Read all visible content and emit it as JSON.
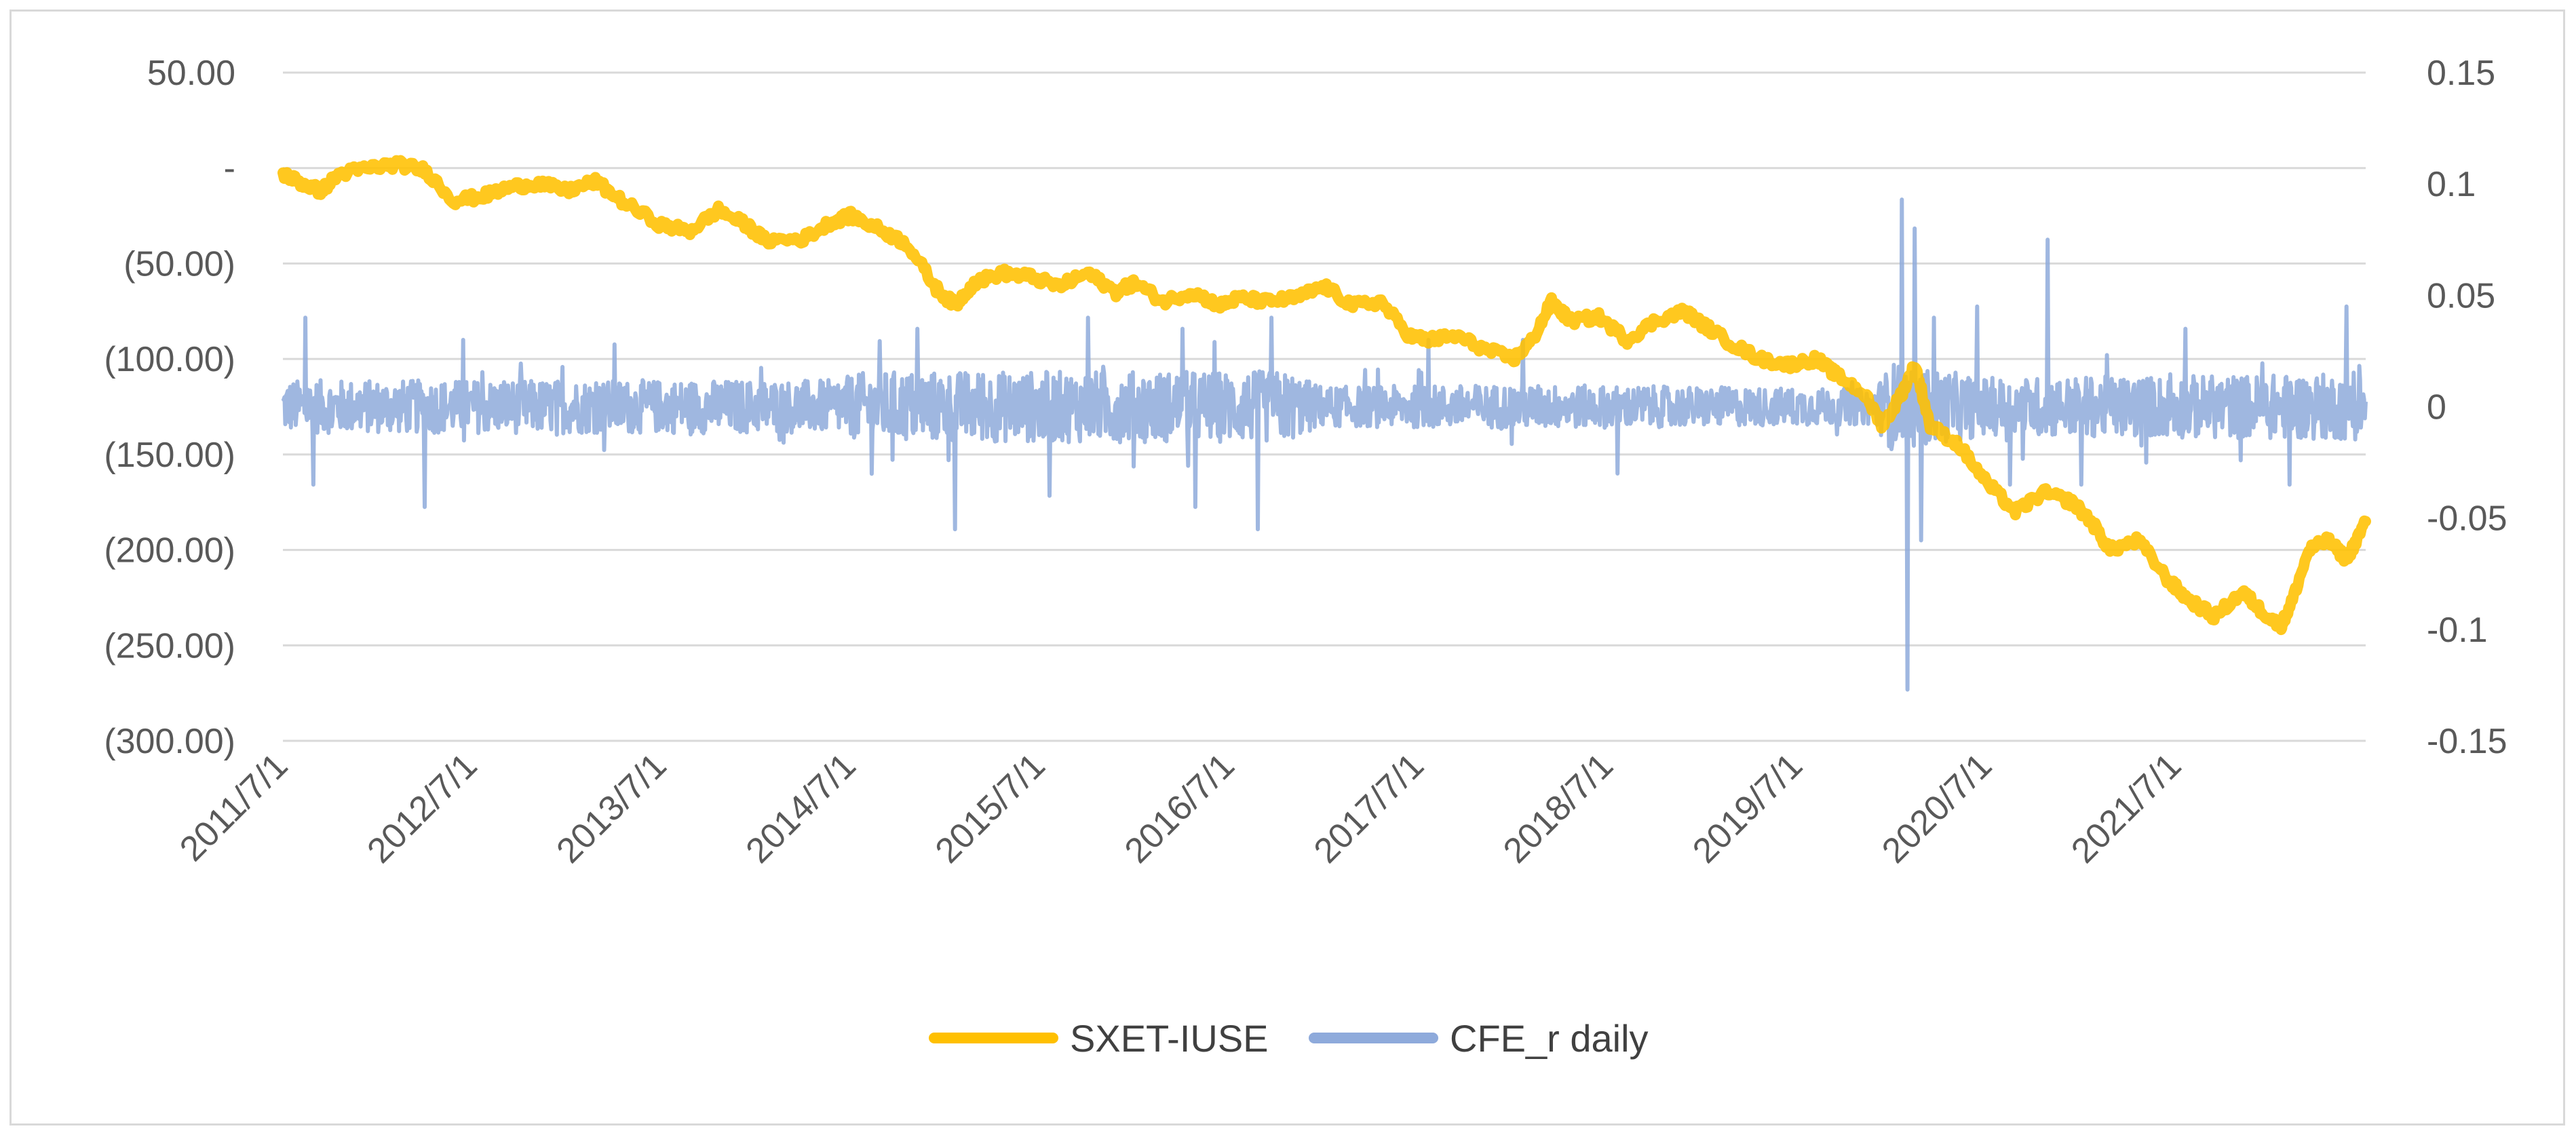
{
  "chart_data": {
    "type": "line",
    "title": "",
    "xlabel": "",
    "ylabel": "",
    "x_tick_labels": [
      "2011/7/1",
      "2012/7/1",
      "2013/7/1",
      "2014/7/1",
      "2015/7/1",
      "2016/7/1",
      "2017/7/1",
      "2018/7/1",
      "2019/7/1",
      "2020/7/1",
      "2021/7/1"
    ],
    "x_range": [
      2011.5,
      2022.5
    ],
    "y_left": {
      "range": [
        -300,
        50
      ],
      "ticks": [
        50,
        0,
        -50,
        -100,
        -150,
        -200,
        -250,
        -300
      ],
      "tick_labels": [
        "50.00",
        "-",
        "(50.00)",
        "(100.00)",
        "(150.00)",
        "(200.00)",
        "(250.00)",
        "(300.00)"
      ]
    },
    "y_right": {
      "range": [
        -0.15,
        0.15
      ],
      "ticks": [
        0.15,
        0.1,
        0.05,
        0,
        -0.05,
        -0.1,
        -0.15
      ],
      "tick_labels": [
        "0.15",
        "0.1",
        "0.05",
        "0",
        "-0.05",
        "-0.1",
        "-0.15"
      ]
    },
    "grid": true,
    "legend_position": "bottom",
    "series": [
      {
        "name": "CFE_r daily",
        "axis": "right",
        "color": "#8eaadb",
        "noise_amplitude_by_year": [
          [
            2011.5,
            0.012
          ],
          [
            2014.4,
            0.012
          ],
          [
            2014.6,
            0.016
          ],
          [
            2016.8,
            0.016
          ],
          [
            2017.0,
            0.009
          ],
          [
            2018.0,
            0.01
          ],
          [
            2019.9,
            0.008
          ],
          [
            2020.0,
            0.02
          ],
          [
            2020.5,
            0.013
          ],
          [
            2022.5,
            0.015
          ]
        ],
        "spikes": [
          {
            "x": 2011.62,
            "y": 0.04
          },
          {
            "x": 2011.66,
            "y": -0.035
          },
          {
            "x": 2012.25,
            "y": -0.045
          },
          {
            "x": 2012.45,
            "y": 0.03
          },
          {
            "x": 2013.25,
            "y": 0.028
          },
          {
            "x": 2014.85,
            "y": 0.035
          },
          {
            "x": 2015.05,
            "y": -0.055
          },
          {
            "x": 2015.55,
            "y": -0.04
          },
          {
            "x": 2015.75,
            "y": 0.04
          },
          {
            "x": 2016.25,
            "y": 0.035
          },
          {
            "x": 2016.32,
            "y": -0.045
          },
          {
            "x": 2016.65,
            "y": -0.055
          },
          {
            "x": 2016.72,
            "y": 0.04
          },
          {
            "x": 2017.55,
            "y": 0.03
          },
          {
            "x": 2018.05,
            "y": 0.03
          },
          {
            "x": 2018.55,
            "y": -0.03
          },
          {
            "x": 2020.05,
            "y": 0.093
          },
          {
            "x": 2020.08,
            "y": -0.127
          },
          {
            "x": 2020.12,
            "y": 0.08
          },
          {
            "x": 2020.15,
            "y": -0.06
          },
          {
            "x": 2020.22,
            "y": 0.04
          },
          {
            "x": 2020.45,
            "y": 0.045
          },
          {
            "x": 2020.62,
            "y": -0.035
          },
          {
            "x": 2020.82,
            "y": 0.075
          },
          {
            "x": 2021.0,
            "y": -0.035
          },
          {
            "x": 2021.55,
            "y": 0.035
          },
          {
            "x": 2022.4,
            "y": 0.045
          },
          {
            "x": 2022.1,
            "y": -0.035
          }
        ]
      },
      {
        "name": "SXET-IUSE",
        "axis": "left",
        "color": "#ffc000",
        "points": [
          [
            2011.5,
            -3
          ],
          [
            2011.6,
            -8
          ],
          [
            2011.7,
            -12
          ],
          [
            2011.8,
            -3
          ],
          [
            2011.95,
            0
          ],
          [
            2012.1,
            2
          ],
          [
            2012.25,
            -1
          ],
          [
            2012.4,
            -17
          ],
          [
            2012.55,
            -15
          ],
          [
            2012.7,
            -10
          ],
          [
            2012.85,
            -8
          ],
          [
            2013.0,
            -12
          ],
          [
            2013.15,
            -7
          ],
          [
            2013.3,
            -18
          ],
          [
            2013.5,
            -30
          ],
          [
            2013.65,
            -33
          ],
          [
            2013.8,
            -22
          ],
          [
            2013.95,
            -30
          ],
          [
            2014.05,
            -38
          ],
          [
            2014.25,
            -37
          ],
          [
            2014.4,
            -28
          ],
          [
            2014.5,
            -25
          ],
          [
            2014.65,
            -32
          ],
          [
            2014.8,
            -40
          ],
          [
            2014.95,
            -63
          ],
          [
            2015.05,
            -72
          ],
          [
            2015.15,
            -60
          ],
          [
            2015.3,
            -55
          ],
          [
            2015.45,
            -57
          ],
          [
            2015.6,
            -62
          ],
          [
            2015.75,
            -55
          ],
          [
            2015.9,
            -65
          ],
          [
            2016.0,
            -60
          ],
          [
            2016.15,
            -70
          ],
          [
            2016.3,
            -65
          ],
          [
            2016.45,
            -72
          ],
          [
            2016.55,
            -68
          ],
          [
            2016.7,
            -70
          ],
          [
            2016.85,
            -68
          ],
          [
            2017.0,
            -62
          ],
          [
            2017.15,
            -72
          ],
          [
            2017.3,
            -70
          ],
          [
            2017.45,
            -88
          ],
          [
            2017.55,
            -90
          ],
          [
            2017.7,
            -88
          ],
          [
            2017.85,
            -95
          ],
          [
            2018.0,
            -100
          ],
          [
            2018.1,
            -90
          ],
          [
            2018.2,
            -70
          ],
          [
            2018.3,
            -80
          ],
          [
            2018.45,
            -78
          ],
          [
            2018.6,
            -90
          ],
          [
            2018.75,
            -80
          ],
          [
            2018.9,
            -75
          ],
          [
            2019.0,
            -82
          ],
          [
            2019.15,
            -92
          ],
          [
            2019.3,
            -100
          ],
          [
            2019.45,
            -103
          ],
          [
            2019.6,
            -100
          ],
          [
            2019.7,
            -108
          ],
          [
            2019.85,
            -118
          ],
          [
            2019.95,
            -135
          ],
          [
            2020.05,
            -118
          ],
          [
            2020.12,
            -103
          ],
          [
            2020.2,
            -135
          ],
          [
            2020.35,
            -145
          ],
          [
            2020.5,
            -165
          ],
          [
            2020.65,
            -180
          ],
          [
            2020.8,
            -170
          ],
          [
            2020.95,
            -175
          ],
          [
            2021.05,
            -185
          ],
          [
            2021.15,
            -200
          ],
          [
            2021.3,
            -195
          ],
          [
            2021.45,
            -215
          ],
          [
            2021.55,
            -225
          ],
          [
            2021.7,
            -235
          ],
          [
            2021.85,
            -222
          ],
          [
            2021.95,
            -232
          ],
          [
            2022.05,
            -240
          ],
          [
            2022.1,
            -230
          ],
          [
            2022.2,
            -200
          ],
          [
            2022.3,
            -195
          ],
          [
            2022.4,
            -205
          ],
          [
            2022.5,
            -185
          ]
        ]
      }
    ]
  }
}
